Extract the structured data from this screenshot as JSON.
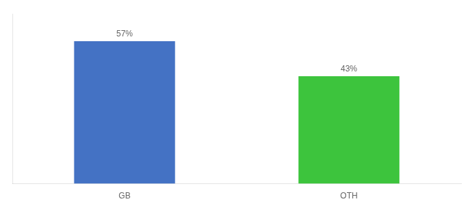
{
  "chart_data": {
    "type": "bar",
    "categories": [
      "GB",
      "OTH"
    ],
    "values": [
      57,
      43
    ],
    "colors": [
      "#4472c4",
      "#3dc43d"
    ],
    "value_labels": [
      "57%",
      "43%"
    ],
    "data_labels": true,
    "ylim": [
      0,
      68
    ],
    "tick_labels": "x",
    "grid": false
  }
}
